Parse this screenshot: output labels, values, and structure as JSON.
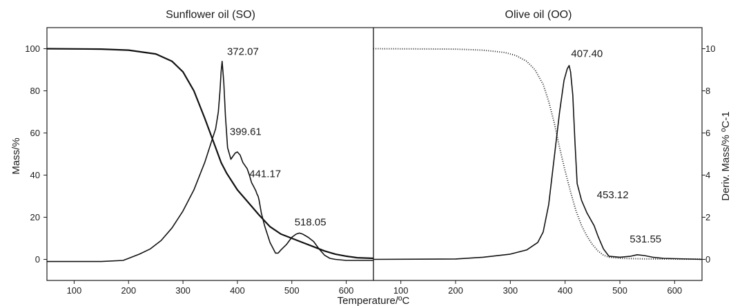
{
  "chart_data": [
    {
      "type": "line",
      "title": "Sunflower oil (SO)",
      "xlabel": "Temperature/ºC",
      "ylabel": "Mass/%",
      "xlim": [
        50,
        650
      ],
      "ylim": [
        -10,
        110
      ],
      "y2lim": [
        -1,
        11
      ],
      "x_ticks": [
        100,
        200,
        300,
        400,
        500,
        600
      ],
      "y_ticks": [
        0,
        20,
        40,
        60,
        80,
        100
      ],
      "series": [
        {
          "axis": "left",
          "style": "solid-thick",
          "x": [
            50,
            150,
            200,
            250,
            280,
            300,
            320,
            340,
            360,
            370,
            380,
            390,
            400,
            420,
            440,
            460,
            480,
            500,
            520,
            540,
            560,
            580,
            600,
            620,
            650
          ],
          "y": [
            100,
            99.8,
            99.3,
            97.5,
            94,
            89,
            80,
            67,
            53,
            46,
            41,
            37,
            33,
            27,
            21,
            15.5,
            12,
            10,
            8,
            6,
            4,
            2.5,
            1.5,
            0.8,
            0.5
          ]
        },
        {
          "axis": "right",
          "style": "solid",
          "x": [
            50,
            150,
            190,
            200,
            220,
            240,
            260,
            280,
            300,
            320,
            340,
            350,
            360,
            365,
            368,
            370,
            372,
            375,
            378,
            382,
            388,
            392,
            396,
            400,
            405,
            410,
            414,
            418,
            422,
            426,
            430,
            434,
            436,
            438,
            440,
            444,
            450,
            460,
            470,
            475,
            480,
            490,
            500,
            508,
            514,
            520,
            530,
            540,
            550,
            560,
            570,
            580,
            600,
            650
          ],
          "y": [
            -0.1,
            -0.1,
            -0.05,
            0.05,
            0.25,
            0.5,
            0.9,
            1.5,
            2.3,
            3.3,
            4.6,
            5.4,
            6.2,
            7.0,
            8.0,
            8.9,
            9.4,
            8.4,
            6.8,
            5.3,
            4.75,
            4.9,
            5.05,
            5.1,
            4.95,
            4.6,
            4.45,
            4.3,
            4.0,
            3.65,
            3.45,
            3.25,
            3.1,
            3.0,
            2.8,
            2.2,
            1.6,
            0.8,
            0.3,
            0.3,
            0.45,
            0.7,
            1.05,
            1.2,
            1.25,
            1.2,
            1.05,
            0.85,
            0.5,
            0.2,
            0.05,
            0.0,
            -0.05,
            -0.05
          ]
        }
      ],
      "annotations": [
        {
          "text": "372.07",
          "x": 381,
          "y": 97
        },
        {
          "text": "399.61",
          "x": 386,
          "y": 59
        },
        {
          "text": "441.17",
          "x": 422,
          "y": 39
        },
        {
          "text": "518.05",
          "x": 505,
          "y": 16
        }
      ]
    },
    {
      "type": "line",
      "title": "Olive oil (OO)",
      "xlabel": "Temperature/ºC",
      "y2label": "Deriv. Mass/% ºC-1",
      "xlim": [
        50,
        650
      ],
      "ylim": [
        -10,
        110
      ],
      "y2lim": [
        -1,
        11
      ],
      "x_ticks": [
        100,
        200,
        300,
        400,
        500,
        600
      ],
      "y2_ticks": [
        0,
        2,
        4,
        6,
        8,
        10
      ],
      "series": [
        {
          "axis": "left",
          "style": "dotted",
          "x": [
            50,
            200,
            250,
            290,
            310,
            330,
            345,
            360,
            370,
            380,
            390,
            400,
            410,
            420,
            430,
            440,
            450,
            460,
            470,
            480,
            500,
            550,
            650
          ],
          "y": [
            100,
            99.8,
            99.3,
            98.2,
            96.8,
            94,
            90,
            83,
            75,
            65,
            53,
            42,
            32,
            23,
            16,
            11,
            7,
            4,
            2,
            1,
            0.5,
            0.2,
            0.1
          ]
        },
        {
          "axis": "right",
          "style": "solid",
          "x": [
            50,
            200,
            250,
            300,
            330,
            350,
            360,
            370,
            380,
            390,
            398,
            404,
            407.4,
            410,
            414,
            418,
            422,
            430,
            440,
            453,
            460,
            470,
            480,
            500,
            520,
            531.5,
            545,
            560,
            580,
            650
          ],
          "y": [
            0,
            0.02,
            0.1,
            0.25,
            0.45,
            0.8,
            1.3,
            2.6,
            4.8,
            7.0,
            8.5,
            9.05,
            9.2,
            8.9,
            7.8,
            5.6,
            3.6,
            2.8,
            2.2,
            1.6,
            1.1,
            0.5,
            0.15,
            0.1,
            0.15,
            0.22,
            0.18,
            0.1,
            0.05,
            0
          ]
        }
      ],
      "annotations": [
        {
          "text": "407.40",
          "x": 411,
          "y": 96
        },
        {
          "text": "453.12",
          "x": 458,
          "y": 29
        },
        {
          "text": "531.55",
          "x": 518,
          "y": 8
        }
      ]
    }
  ]
}
